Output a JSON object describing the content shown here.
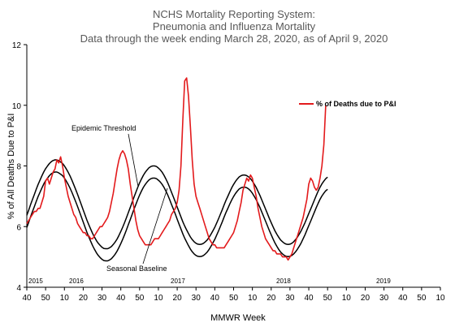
{
  "chart_data": {
    "type": "line",
    "title_lines": [
      "NCHS Mortality Reporting System:",
      "Pneumonia and Influenza Mortality",
      "Data through the week ending March 28, 2020, as of April 9, 2020"
    ],
    "xlabel": "MMWR Week",
    "ylabel": "% of All Deaths Due to P&I",
    "ylim": [
      4,
      12
    ],
    "yticks": [
      4,
      6,
      8,
      10,
      12
    ],
    "xticks": [
      "40",
      "50",
      "10",
      "20",
      "30",
      "40",
      "50",
      "10",
      "20",
      "30",
      "40",
      "50",
      "10",
      "20",
      "30",
      "40",
      "50",
      "10",
      "20",
      "30",
      "40",
      "50",
      "10"
    ],
    "years": [
      "2015",
      "2016",
      "2017",
      "2018",
      "2019"
    ],
    "legend": {
      "label": "% of Deaths due to P&I",
      "placement": "top-right"
    },
    "annotations": [
      "Epidemic Threshold",
      "Seasonal Baseline"
    ],
    "series": [
      {
        "name": "% of Deaths due to P&I",
        "color": "#e31a1c",
        "week_offset_start": 0,
        "values": [
          6.1,
          6.2,
          6.3,
          6.4,
          6.5,
          6.5,
          6.6,
          6.6,
          6.8,
          7.0,
          7.5,
          7.6,
          7.4,
          7.6,
          7.8,
          7.9,
          8.2,
          8.1,
          8.3,
          8.0,
          7.6,
          7.3,
          7.0,
          6.8,
          6.6,
          6.4,
          6.3,
          6.1,
          6.0,
          5.9,
          5.8,
          5.8,
          5.7,
          5.7,
          5.6,
          5.6,
          5.7,
          5.8,
          5.9,
          6.0,
          6.0,
          6.1,
          6.2,
          6.3,
          6.5,
          6.8,
          7.1,
          7.5,
          7.9,
          8.2,
          8.4,
          8.5,
          8.4,
          8.2,
          7.9,
          7.4,
          7.0,
          6.6,
          6.2,
          5.9,
          5.7,
          5.6,
          5.5,
          5.4,
          5.4,
          5.4,
          5.4,
          5.5,
          5.6,
          5.6,
          5.6,
          5.7,
          5.8,
          5.9,
          6.0,
          6.1,
          6.2,
          6.4,
          6.5,
          6.6,
          6.8,
          7.2,
          8.0,
          9.5,
          10.8,
          10.9,
          10.3,
          9.3,
          8.2,
          7.4,
          7.0,
          6.8,
          6.6,
          6.4,
          6.2,
          6.0,
          5.8,
          5.6,
          5.5,
          5.4,
          5.4,
          5.3,
          5.3,
          5.3,
          5.3,
          5.3,
          5.4,
          5.5,
          5.6,
          5.7,
          5.8,
          6.0,
          6.2,
          6.5,
          6.8,
          7.2,
          7.4,
          7.6,
          7.5,
          7.7,
          7.6,
          7.3,
          7.0,
          6.6,
          6.3,
          6.0,
          5.8,
          5.6,
          5.5,
          5.4,
          5.3,
          5.2,
          5.2,
          5.1,
          5.1,
          5.1,
          5.0,
          5.0,
          5.0,
          4.9,
          5.0,
          5.1,
          5.3,
          5.5,
          5.7,
          5.9,
          6.1,
          6.3,
          6.6,
          6.9,
          7.4,
          7.6,
          7.5,
          7.3,
          7.2,
          7.3,
          7.6,
          8.0,
          8.7,
          10.0
        ]
      },
      {
        "name": "Epidemic Threshold",
        "color": "#000000",
        "week_offset_start": 0,
        "values": [
          6.37,
          6.54,
          6.72,
          6.89,
          7.06,
          7.23,
          7.39,
          7.53,
          7.67,
          7.8,
          7.91,
          8.0,
          8.08,
          8.14,
          8.18,
          8.2,
          8.2,
          8.17,
          8.13,
          8.08,
          8.0,
          7.9,
          7.79,
          7.67,
          7.53,
          7.38,
          7.22,
          7.06,
          6.89,
          6.72,
          6.55,
          6.38,
          6.21,
          6.06,
          5.91,
          5.77,
          5.65,
          5.54,
          5.45,
          5.38,
          5.32,
          5.28,
          5.27,
          5.27,
          5.3,
          5.34,
          5.41,
          5.49,
          5.59,
          5.71,
          5.84,
          5.98,
          6.13,
          6.29,
          6.46,
          6.63,
          6.8,
          6.97,
          7.13,
          7.29,
          7.44,
          7.57,
          7.69,
          7.79,
          7.87,
          7.94,
          7.98,
          8.0,
          8.0,
          7.98,
          7.93,
          7.87,
          7.79,
          7.69,
          7.57,
          7.44,
          7.29,
          7.13,
          6.97,
          6.81,
          6.64,
          6.48,
          6.32,
          6.16,
          6.02,
          5.89,
          5.77,
          5.66,
          5.57,
          5.5,
          5.45,
          5.42,
          5.41,
          5.42,
          5.45,
          5.5,
          5.56,
          5.65,
          5.75,
          5.86,
          5.98,
          6.12,
          6.26,
          6.41,
          6.56,
          6.72,
          6.87,
          7.01,
          7.15,
          7.28,
          7.39,
          7.49,
          7.57,
          7.64,
          7.68,
          7.7,
          7.7,
          7.68,
          7.64,
          7.58,
          7.5,
          7.4,
          7.29,
          7.16,
          7.03,
          6.88,
          6.73,
          6.58,
          6.43,
          6.27,
          6.13,
          5.99,
          5.86,
          5.75,
          5.65,
          5.56,
          5.5,
          5.45,
          5.42,
          5.41,
          5.42,
          5.45,
          5.5,
          5.57,
          5.66,
          5.76,
          5.87,
          6.0,
          6.13,
          6.28,
          6.43,
          6.58,
          6.73,
          6.88,
          7.03,
          7.17,
          7.3,
          7.41,
          7.5,
          7.58,
          7.63
        ]
      },
      {
        "name": "Seasonal Baseline",
        "color": "#000000",
        "week_offset_start": 0,
        "values": [
          5.97,
          6.14,
          6.32,
          6.49,
          6.66,
          6.83,
          6.99,
          7.13,
          7.27,
          7.4,
          7.51,
          7.6,
          7.68,
          7.74,
          7.78,
          7.8,
          7.8,
          7.77,
          7.73,
          7.68,
          7.6,
          7.5,
          7.39,
          7.27,
          7.13,
          6.98,
          6.82,
          6.66,
          6.49,
          6.32,
          6.15,
          5.98,
          5.81,
          5.66,
          5.51,
          5.37,
          5.25,
          5.14,
          5.05,
          4.98,
          4.92,
          4.88,
          4.87,
          4.87,
          4.9,
          4.94,
          5.01,
          5.09,
          5.19,
          5.31,
          5.44,
          5.58,
          5.73,
          5.89,
          6.06,
          6.23,
          6.4,
          6.57,
          6.73,
          6.89,
          7.04,
          7.17,
          7.29,
          7.39,
          7.47,
          7.54,
          7.58,
          7.6,
          7.6,
          7.58,
          7.53,
          7.47,
          7.39,
          7.29,
          7.17,
          7.04,
          6.89,
          6.73,
          6.57,
          6.41,
          6.24,
          6.08,
          5.92,
          5.76,
          5.62,
          5.49,
          5.37,
          5.26,
          5.17,
          5.1,
          5.05,
          5.02,
          5.01,
          5.02,
          5.05,
          5.1,
          5.16,
          5.25,
          5.35,
          5.46,
          5.58,
          5.72,
          5.86,
          6.01,
          6.16,
          6.32,
          6.47,
          6.61,
          6.75,
          6.88,
          6.99,
          7.09,
          7.17,
          7.24,
          7.28,
          7.3,
          7.3,
          7.28,
          7.24,
          7.18,
          7.1,
          7.0,
          6.89,
          6.76,
          6.63,
          6.48,
          6.33,
          6.18,
          6.03,
          5.87,
          5.73,
          5.59,
          5.46,
          5.35,
          5.25,
          5.16,
          5.1,
          5.05,
          5.02,
          5.01,
          5.02,
          5.05,
          5.1,
          5.17,
          5.26,
          5.36,
          5.47,
          5.6,
          5.73,
          5.88,
          6.03,
          6.18,
          6.33,
          6.48,
          6.63,
          6.77,
          6.9,
          7.01,
          7.1,
          7.18,
          7.23
        ]
      }
    ]
  }
}
